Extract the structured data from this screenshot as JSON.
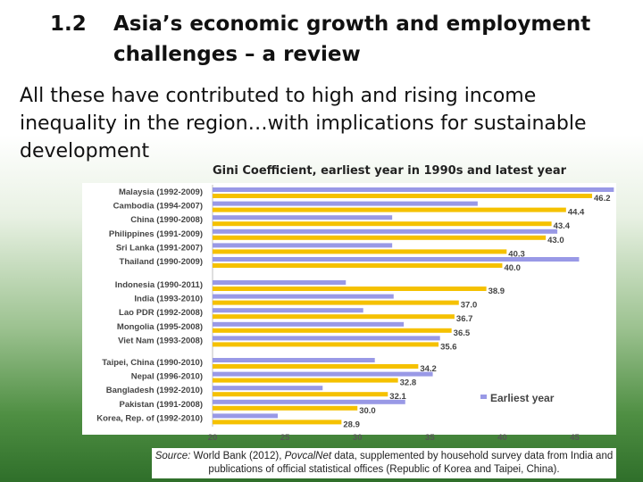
{
  "slide": {
    "number": "1.2",
    "title_line1": "Asia’s economic growth and employment",
    "title_line2": "challenges – a review",
    "body": "All these have contributed to high and rising income inequality in the region…with implications for sustainable development",
    "source_label": "Source:",
    "source_pre": " World Bank (2012), ",
    "source_italic": "PovcalNet",
    "source_post": " data, supplemented by household survey data from India and publications of official statistical offices (Republic of Korea and Taipei, China)."
  },
  "chart_data": {
    "type": "bar",
    "orientation": "horizontal",
    "title": "Gini Coefficient, earliest year in 1990s and latest year",
    "xlim": [
      20,
      47
    ],
    "x_ticks": [
      20,
      25,
      30,
      35,
      40,
      45
    ],
    "grid": false,
    "legend_position": "bottom-right",
    "groups": [
      {
        "categories": [
          "Malaysia (1992-2009)",
          "Cambodia (1994-2007)",
          "China (1990-2008)",
          "Philippines (1991-2009)",
          "Sri Lanka (1991-2007)",
          "Thailand (1990-2009)"
        ],
        "earliest": [
          47.7,
          38.3,
          32.4,
          43.8,
          32.4,
          45.3
        ],
        "latest": [
          46.2,
          44.4,
          43.4,
          43.0,
          40.3,
          40.0
        ],
        "latest_labels": [
          "46.2",
          "44.4",
          "43.4",
          "43.0",
          "40.3",
          "40.0"
        ]
      },
      {
        "categories": [
          "Indonesia (1990-2011)",
          "India (1993-2010)",
          "Lao PDR (1992-2008)",
          "Mongolia (1995-2008)",
          "Viet Nam (1993-2008)"
        ],
        "earliest": [
          29.2,
          32.5,
          30.4,
          33.2,
          35.7
        ],
        "latest": [
          38.9,
          37.0,
          36.7,
          36.5,
          35.6
        ],
        "latest_labels": [
          "38.9",
          "37.0",
          "36.7",
          "36.5",
          "35.6"
        ]
      },
      {
        "categories": [
          "Taipei, China (1990-2010)",
          "Nepal (1996-2010)",
          "Bangladesh (1992-2010)",
          "Pakistan (1991-2008)",
          "Korea, Rep. of (1992-2010)"
        ],
        "earliest": [
          31.2,
          35.2,
          27.6,
          33.3,
          24.5
        ],
        "latest": [
          34.2,
          32.8,
          32.1,
          30.0,
          28.9
        ],
        "latest_labels": [
          "34.2",
          "32.8",
          "32.1",
          "30.0",
          "28.9"
        ]
      }
    ],
    "series": [
      {
        "name": "Earliest year",
        "color": "#9999e6"
      },
      {
        "name": "",
        "color": "#f5c100"
      }
    ]
  }
}
